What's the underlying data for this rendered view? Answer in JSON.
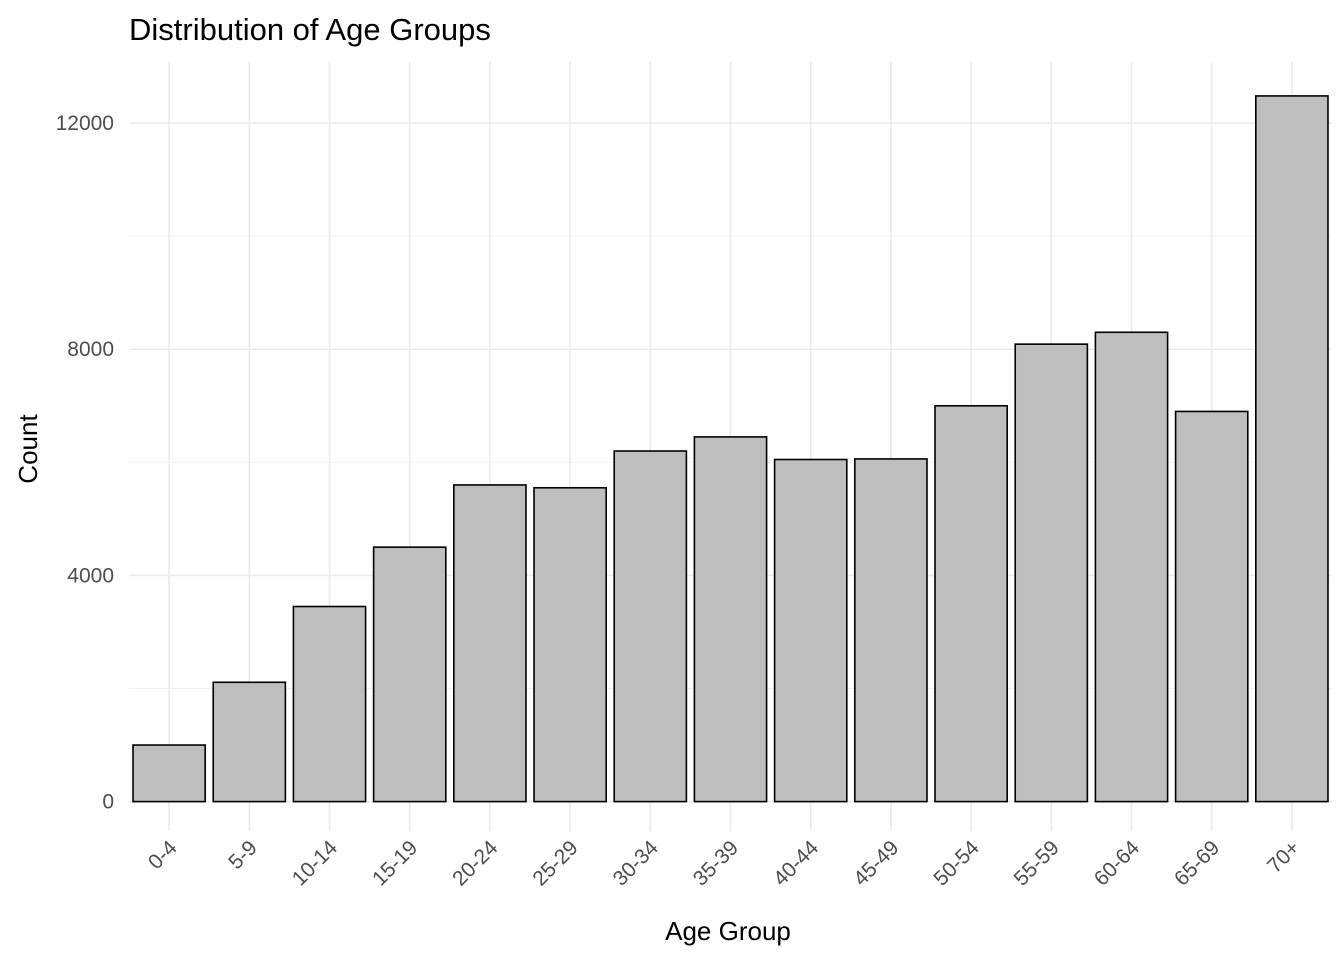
{
  "chart_data": {
    "type": "bar",
    "title": "Distribution of Age Groups",
    "xlabel": "Age Group",
    "ylabel": "Count",
    "categories": [
      "0-4",
      "5-9",
      "10-14",
      "15-19",
      "20-24",
      "25-29",
      "30-34",
      "35-39",
      "40-44",
      "45-49",
      "50-54",
      "55-59",
      "60-64",
      "65-69",
      "70+"
    ],
    "values": [
      1000,
      2110,
      3450,
      4500,
      5600,
      5550,
      6200,
      6450,
      6050,
      6060,
      7000,
      8090,
      8300,
      6900,
      12480
    ],
    "ylim": [
      -520,
      13080
    ],
    "yticks": [
      0,
      4000,
      8000,
      12000
    ],
    "ytick_labels": [
      "0",
      "4000",
      "8000",
      "12000"
    ],
    "grid": true,
    "legend": "none",
    "bar_fill": "#bebebe",
    "bar_outline": "#000000"
  }
}
